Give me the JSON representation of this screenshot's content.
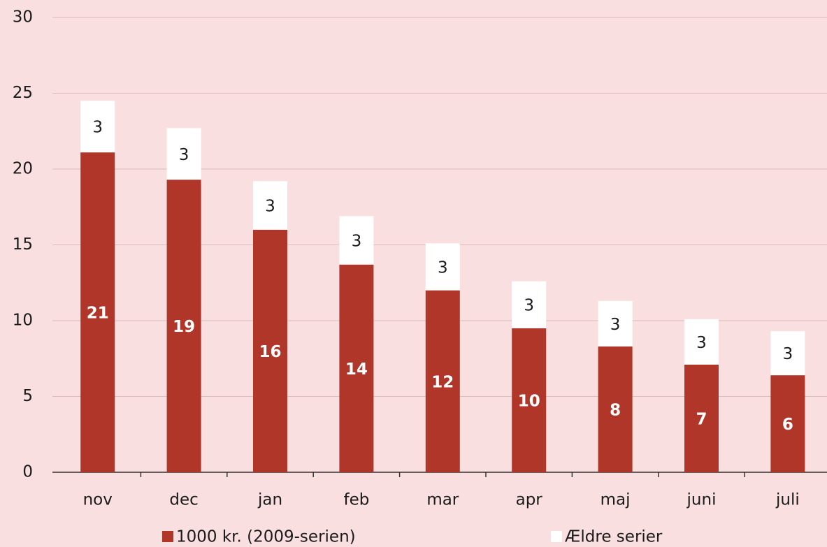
{
  "chart_data": {
    "type": "stacked_bar",
    "categories": [
      "nov",
      "dec",
      "jan",
      "feb",
      "mar",
      "apr",
      "maj",
      "juni",
      "juli"
    ],
    "series": [
      {
        "name": "1000 kr. (2009-serien)",
        "color": "#b0362a",
        "values": [
          21.1,
          19.3,
          16.0,
          13.7,
          12.0,
          9.5,
          8.3,
          7.1,
          6.4
        ],
        "value_labels": [
          "21",
          "19",
          "16",
          "14",
          "12",
          "10",
          "8",
          "7",
          "6"
        ]
      },
      {
        "name": "Ældre serier",
        "color": "#ffffff",
        "values": [
          3.4,
          3.4,
          3.2,
          3.2,
          3.1,
          3.1,
          3.0,
          3.0,
          2.9
        ],
        "value_labels": [
          "3",
          "3",
          "3",
          "3",
          "3",
          "3",
          "3",
          "3",
          "3"
        ]
      }
    ],
    "ylim": [
      0,
      30
    ],
    "yticks": [
      0,
      5,
      10,
      15,
      20,
      25,
      30
    ],
    "grid": true,
    "legend": "bottom"
  }
}
